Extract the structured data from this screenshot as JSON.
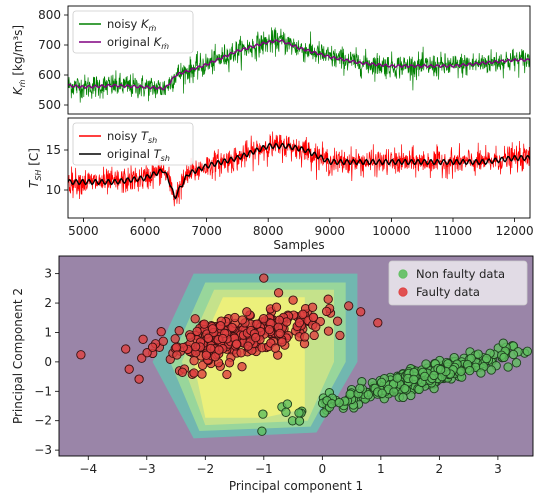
{
  "chart_data": [
    {
      "type": "line",
      "panel": "top",
      "ylabel": "K_ṁ [kg/m³s]",
      "ylabel_parts": {
        "main": "K",
        "sub": "ṁ",
        "unit": "[kg/m³s]"
      },
      "xlim": [
        4750,
        12250
      ],
      "ylim": [
        470,
        830
      ],
      "yticks": [
        500,
        600,
        700,
        800
      ],
      "grid": false,
      "legend_position": "top-left",
      "series": [
        {
          "name": "noisy Kṁ",
          "name_parts": {
            "prefix": "noisy ",
            "var": "K",
            "sub": "ṁ"
          },
          "color": "#008000",
          "noise_amplitude": 45,
          "x": [
            4750,
            5000,
            5500,
            6000,
            6300,
            6350,
            6500,
            7000,
            7500,
            8000,
            8200,
            8500,
            9000,
            9500,
            10000,
            10500,
            11000,
            11500,
            12000,
            12250
          ],
          "y": [
            565,
            560,
            565,
            560,
            555,
            560,
            600,
            635,
            680,
            710,
            715,
            690,
            660,
            640,
            630,
            630,
            630,
            640,
            650,
            650
          ]
        },
        {
          "name": "original Kṁ",
          "name_parts": {
            "prefix": "original ",
            "var": "K",
            "sub": "ṁ"
          },
          "color": "#800080",
          "noise_amplitude": 4,
          "x": [
            4750,
            5000,
            5500,
            6000,
            6300,
            6350,
            6500,
            7000,
            7500,
            8000,
            8200,
            8500,
            9000,
            9500,
            10000,
            10500,
            11000,
            11500,
            12000,
            12250
          ],
          "y": [
            565,
            560,
            565,
            560,
            555,
            560,
            600,
            635,
            680,
            710,
            715,
            690,
            660,
            640,
            630,
            630,
            630,
            640,
            650,
            650
          ]
        }
      ]
    },
    {
      "type": "line",
      "panel": "middle",
      "xlabel": "Samples",
      "ylabel": "T_SH [C]",
      "ylabel_parts": {
        "main": "T",
        "sub": "SH",
        "unit": "[C]"
      },
      "xlim": [
        4750,
        12250
      ],
      "ylim": [
        6.5,
        19
      ],
      "xticks": [
        5000,
        6000,
        7000,
        8000,
        9000,
        10000,
        11000,
        12000
      ],
      "yticks": [
        10,
        15
      ],
      "grid": false,
      "legend_position": "top-left",
      "series": [
        {
          "name": "noisy Tsh",
          "name_parts": {
            "prefix": "noisy ",
            "var": "T",
            "sub": "sh"
          },
          "color": "#ff0000",
          "noise_amplitude": 1.8,
          "x": [
            4750,
            5000,
            5500,
            6000,
            6300,
            6400,
            6480,
            6550,
            6700,
            7000,
            7500,
            8000,
            8300,
            8600,
            9000,
            9500,
            10000,
            10500,
            11000,
            11500,
            12000,
            12250
          ],
          "y": [
            11,
            11,
            11,
            11.5,
            12.5,
            11,
            9,
            10,
            12,
            13,
            14,
            15.5,
            15.5,
            15,
            13.5,
            13.5,
            13.5,
            13.5,
            13.5,
            13.5,
            14,
            14
          ]
        },
        {
          "name": "original Tsh",
          "name_parts": {
            "prefix": "original ",
            "var": "T",
            "sub": "sh"
          },
          "color": "#000000",
          "noise_amplitude": 0.3,
          "x": [
            4750,
            5000,
            5500,
            6000,
            6300,
            6400,
            6480,
            6550,
            6700,
            7000,
            7500,
            8000,
            8300,
            8600,
            9000,
            9500,
            10000,
            10500,
            11000,
            11500,
            12000,
            12250
          ],
          "y": [
            11,
            11,
            11,
            11.5,
            12.5,
            11,
            9,
            10,
            12,
            13,
            14,
            15.5,
            15.5,
            15,
            13.5,
            13.5,
            13.5,
            13.5,
            13.5,
            13.5,
            14,
            14
          ]
        }
      ]
    },
    {
      "type": "scatter",
      "panel": "bottom",
      "xlabel": "Principal component 1",
      "ylabel": "Principal Component 2",
      "xlim": [
        -4.5,
        3.6
      ],
      "ylim": [
        -3.2,
        3.6
      ],
      "xticks": [
        -4,
        -3,
        -2,
        -1,
        0,
        1,
        2,
        3
      ],
      "yticks": [
        -3,
        -2,
        -1,
        0,
        1,
        2,
        3
      ],
      "grid": false,
      "legend_position": "top-right",
      "background_color": "#9a85a8",
      "decision_region": {
        "colors": [
          "#6fb9b0",
          "#9ad79a",
          "#c7e38a",
          "#eef07a"
        ],
        "levels": [
          [
            [
              -2.9,
              0.0
            ],
            [
              -2.2,
              3.0
            ],
            [
              0.6,
              3.0
            ],
            [
              0.6,
              0.0
            ],
            [
              -0.1,
              -2.4
            ],
            [
              -2.2,
              -2.6
            ]
          ],
          [
            [
              -2.6,
              0.0
            ],
            [
              -2.0,
              2.7
            ],
            [
              0.4,
              2.7
            ],
            [
              0.4,
              0.0
            ],
            [
              -0.2,
              -2.2
            ],
            [
              -2.1,
              -2.35
            ]
          ],
          [
            [
              -2.4,
              0.0
            ],
            [
              -1.85,
              2.45
            ],
            [
              0.2,
              2.45
            ],
            [
              0.2,
              0.0
            ],
            [
              -0.25,
              -2.0
            ],
            [
              -2.0,
              -2.15
            ]
          ],
          [
            [
              -2.2,
              0.0
            ],
            [
              -1.7,
              2.2
            ],
            [
              -0.3,
              2.2
            ],
            [
              -0.3,
              -1.6
            ],
            [
              -1.0,
              -1.9
            ],
            [
              -2.0,
              -1.9
            ]
          ]
        ]
      },
      "series": [
        {
          "name": "Non faulty data",
          "color": "#5fbf5f",
          "edgecolor": "#1f3f1f",
          "cluster": {
            "center": [
              1.6,
              -0.6
            ],
            "slope": 0.55,
            "spread_along": 0.95,
            "spread_across": 0.18,
            "n": 320
          }
        },
        {
          "name": "Faulty data",
          "color": "#e04040",
          "edgecolor": "#3a1010",
          "cluster": {
            "center": [
              -1.4,
              0.9
            ],
            "slope": 0.55,
            "spread_along": 0.8,
            "spread_across": 0.35,
            "n": 300
          },
          "outliers": [
            [
              -3.3,
              -0.25
            ],
            [
              -2.9,
              0.5
            ],
            [
              -1.0,
              2.85
            ],
            [
              -0.3,
              0.85
            ],
            [
              0.3,
              0.9
            ],
            [
              -0.5,
              2.1
            ]
          ]
        }
      ]
    }
  ]
}
